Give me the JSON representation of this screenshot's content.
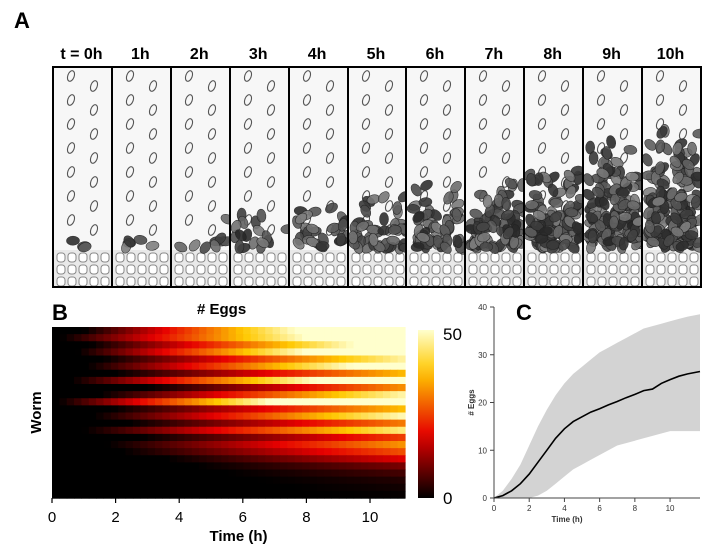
{
  "figure": {
    "panel_a_label": "A",
    "panel_b_label": "B",
    "panel_c_label": "C",
    "time_labels": [
      "t = 0h",
      "1h",
      "2h",
      "3h",
      "4h",
      "5h",
      "6h",
      "7h",
      "8h",
      "9h",
      "10h"
    ]
  },
  "colors": {
    "heat_low": "#000000",
    "heat_mid": "#e00000",
    "heat_high": "#ffffcc",
    "band": "#d3d3d3",
    "line": "#000000"
  },
  "chart_data": [
    {
      "type": "heatmap",
      "title": "# Eggs",
      "xlabel": "Time (h)",
      "ylabel": "Worm",
      "xticks": [
        0,
        2,
        4,
        6,
        8,
        10
      ],
      "xlim": [
        0,
        11.1
      ],
      "colorbar": {
        "min": 0,
        "max": 50,
        "tick_labels": [
          "50",
          "0"
        ]
      },
      "rows": 24,
      "time_bins": 48,
      "row_onset_h": [
        1.0,
        0.3,
        1.2,
        0.8,
        1.6,
        1.1,
        2.0,
        0.6,
        3.0,
        1.5,
        0.2,
        1.9,
        1.3,
        2.4,
        1.0,
        2.8,
        1.7,
        2.2,
        3.6,
        4.5,
        5.5,
        6.5,
        7.5,
        8.5
      ],
      "row_rate_per_h": [
        7.5,
        6.5,
        6.0,
        7.0,
        5.0,
        6.0,
        4.0,
        6.5,
        4.0,
        5.0,
        7.5,
        4.0,
        5.0,
        3.5,
        4.5,
        3.0,
        3.5,
        3.0,
        2.5,
        1.5,
        1.0,
        0.6,
        0.4,
        0.2
      ]
    },
    {
      "type": "line",
      "xlabel": "Time (h)",
      "ylabel": "# Eggs",
      "xlim": [
        0,
        11.7
      ],
      "ylim": [
        0,
        40
      ],
      "xticks": [
        0,
        2,
        4,
        6,
        8,
        10
      ],
      "yticks": [
        0,
        10,
        20,
        30,
        40
      ],
      "series": [
        {
          "name": "mean",
          "x": [
            0,
            0.5,
            1,
            1.5,
            2,
            2.5,
            3,
            3.5,
            4,
            4.5,
            5,
            5.5,
            6,
            6.5,
            7,
            7.5,
            8,
            8.5,
            9,
            9.5,
            10,
            10.5,
            11,
            11.7
          ],
          "values": [
            0,
            0.5,
            1.5,
            3,
            5,
            7.5,
            10,
            12.5,
            14.5,
            16,
            17,
            18,
            18.7,
            19.5,
            20.2,
            21,
            21.7,
            22.5,
            22.8,
            24,
            24.8,
            25.5,
            26,
            26.5
          ]
        },
        {
          "name": "upper",
          "x": [
            0,
            0.5,
            1,
            1.5,
            2,
            2.5,
            3,
            3.5,
            4,
            4.5,
            5,
            5.5,
            6,
            6.5,
            7,
            7.5,
            8,
            8.5,
            9,
            9.5,
            10,
            10.5,
            11,
            11.7
          ],
          "values": [
            0,
            1.5,
            4,
            7,
            11,
            15,
            18.5,
            21.5,
            24,
            26,
            27.5,
            29,
            30.5,
            31.5,
            32.5,
            33.5,
            34.5,
            35.5,
            36,
            36.5,
            37,
            37.5,
            38,
            38.5
          ]
        },
        {
          "name": "lower",
          "x": [
            0,
            0.5,
            1,
            1.5,
            2,
            2.5,
            3,
            3.5,
            4,
            4.5,
            5,
            5.5,
            6,
            6.5,
            7,
            7.5,
            8,
            8.5,
            9,
            9.5,
            10,
            10.5,
            11,
            11.7
          ],
          "values": [
            0,
            0,
            0,
            0,
            0,
            0.5,
            1.5,
            3,
            4.5,
            6,
            7,
            8,
            9,
            10,
            11,
            11.5,
            12,
            12.5,
            13,
            13.5,
            14,
            14,
            14,
            14
          ]
        }
      ]
    }
  ]
}
